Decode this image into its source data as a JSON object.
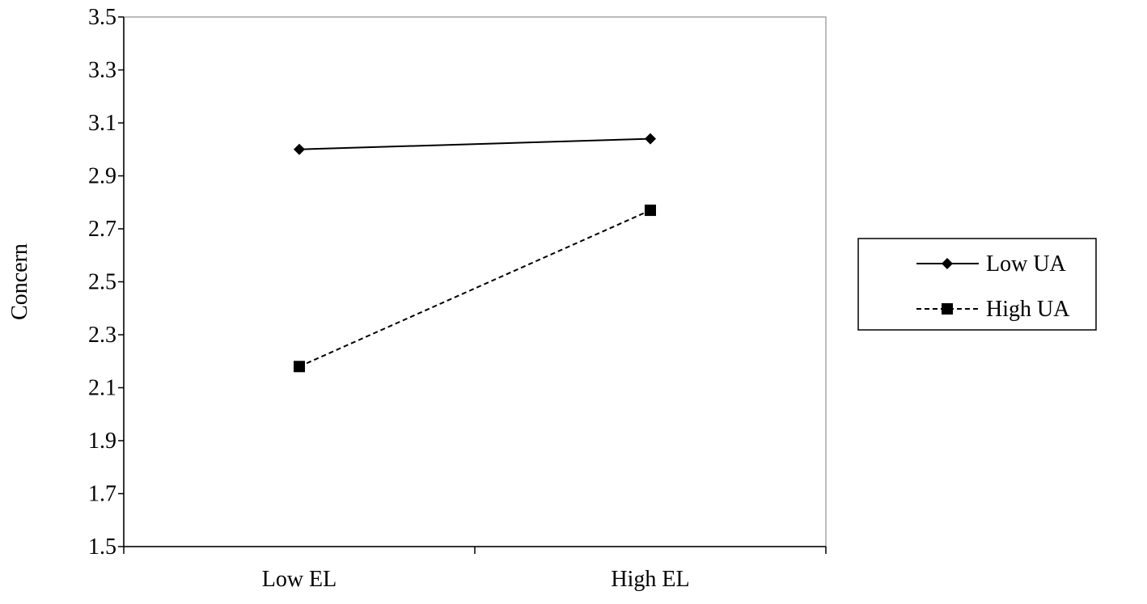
{
  "chart_data": {
    "type": "line",
    "title": "",
    "xlabel": "",
    "ylabel": "Concern",
    "categories": [
      "Low EL",
      "High EL"
    ],
    "ylim": [
      1.5,
      3.5
    ],
    "yticks": [
      "1.5",
      "1.7",
      "1.9",
      "2.1",
      "2.3",
      "2.5",
      "2.7",
      "2.9",
      "3.1",
      "3.3",
      "3.5"
    ],
    "grid": false,
    "legend_position": "right",
    "series": [
      {
        "name": "Low UA",
        "values": [
          3.0,
          3.04
        ],
        "marker": "diamond",
        "line_style": "solid",
        "color": "#000000"
      },
      {
        "name": "High UA",
        "values": [
          2.18,
          2.77
        ],
        "marker": "square",
        "line_style": "dashed",
        "color": "#000000"
      }
    ]
  }
}
